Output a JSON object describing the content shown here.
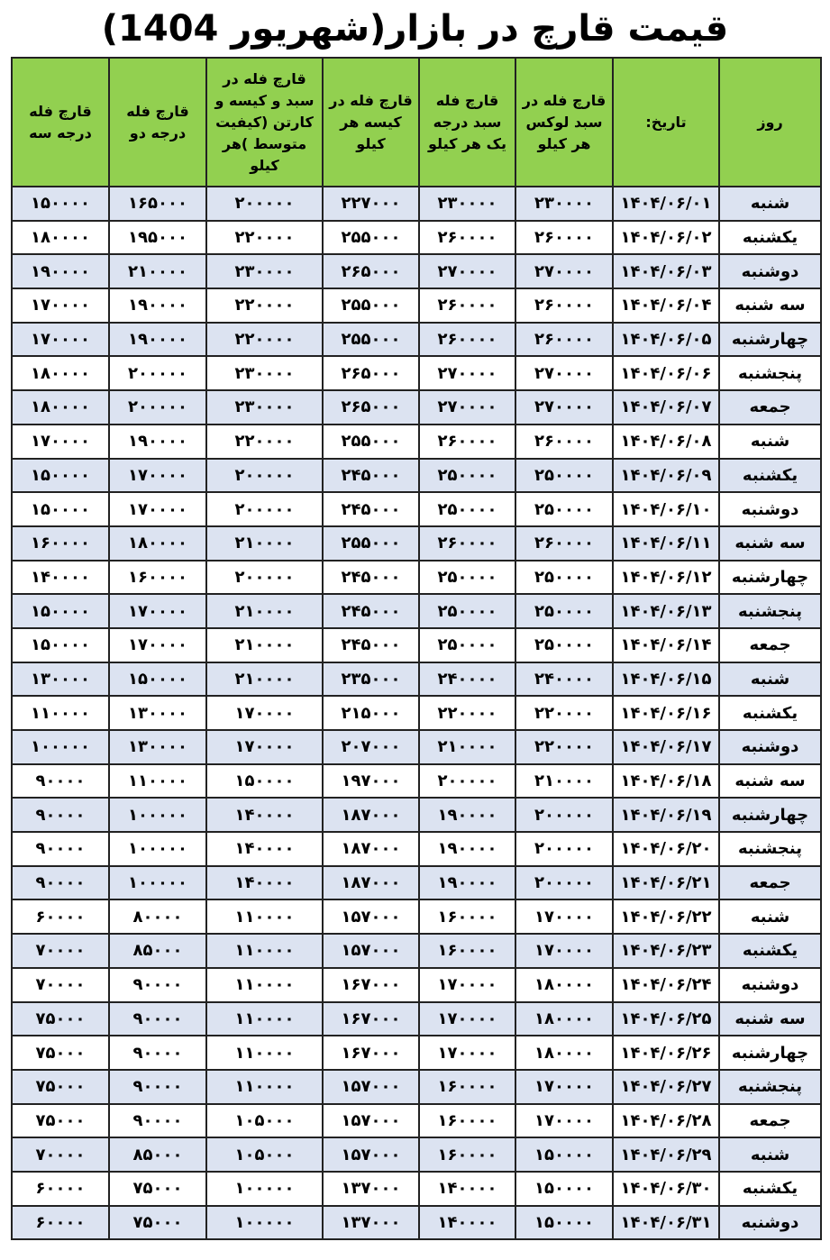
{
  "header": {
    "title": "قیمت قارچ در بازار(شهریور 1404)"
  },
  "table": {
    "columns": [
      "روز",
      "تاریخ:",
      "قارچ فله در سبد لوکس هر کیلو",
      "قارچ فله سبد درجه یک هر کیلو",
      "قارچ فله در کیسه هر کیلو",
      "قارچ فله در سبد و کیسه و کارتن (کیفیت متوسط )هر کیلو",
      "قارچ فله درجه دو",
      "قارچ فله درجه سه"
    ],
    "rows": [
      [
        "شنبه",
        "۱۴۰۴/۰۶/۰۱",
        "۲۳۰۰۰۰",
        "۲۳۰۰۰۰",
        "۲۲۷۰۰۰",
        "۲۰۰۰۰۰",
        "۱۶۵۰۰۰",
        "۱۵۰۰۰۰"
      ],
      [
        "یکشنبه",
        "۱۴۰۴/۰۶/۰۲",
        "۲۶۰۰۰۰",
        "۲۶۰۰۰۰",
        "۲۵۵۰۰۰",
        "۲۲۰۰۰۰",
        "۱۹۵۰۰۰",
        "۱۸۰۰۰۰"
      ],
      [
        "دوشنبه",
        "۱۴۰۴/۰۶/۰۳",
        "۲۷۰۰۰۰",
        "۲۷۰۰۰۰",
        "۲۶۵۰۰۰",
        "۲۳۰۰۰۰",
        "۲۱۰۰۰۰",
        "۱۹۰۰۰۰"
      ],
      [
        "سه شنبه",
        "۱۴۰۴/۰۶/۰۴",
        "۲۶۰۰۰۰",
        "۲۶۰۰۰۰",
        "۲۵۵۰۰۰",
        "۲۲۰۰۰۰",
        "۱۹۰۰۰۰",
        "۱۷۰۰۰۰"
      ],
      [
        "چهارشنبه",
        "۱۴۰۴/۰۶/۰۵",
        "۲۶۰۰۰۰",
        "۲۶۰۰۰۰",
        "۲۵۵۰۰۰",
        "۲۲۰۰۰۰",
        "۱۹۰۰۰۰",
        "۱۷۰۰۰۰"
      ],
      [
        "پنجشنبه",
        "۱۴۰۴/۰۶/۰۶",
        "۲۷۰۰۰۰",
        "۲۷۰۰۰۰",
        "۲۶۵۰۰۰",
        "۲۳۰۰۰۰",
        "۲۰۰۰۰۰",
        "۱۸۰۰۰۰"
      ],
      [
        "جمعه",
        "۱۴۰۴/۰۶/۰۷",
        "۲۷۰۰۰۰",
        "۲۷۰۰۰۰",
        "۲۶۵۰۰۰",
        "۲۳۰۰۰۰",
        "۲۰۰۰۰۰",
        "۱۸۰۰۰۰"
      ],
      [
        "شنبه",
        "۱۴۰۴/۰۶/۰۸",
        "۲۶۰۰۰۰",
        "۲۶۰۰۰۰",
        "۲۵۵۰۰۰",
        "۲۲۰۰۰۰",
        "۱۹۰۰۰۰",
        "۱۷۰۰۰۰"
      ],
      [
        "یکشنبه",
        "۱۴۰۴/۰۶/۰۹",
        "۲۵۰۰۰۰",
        "۲۵۰۰۰۰",
        "۲۴۵۰۰۰",
        "۲۰۰۰۰۰",
        "۱۷۰۰۰۰",
        "۱۵۰۰۰۰"
      ],
      [
        "دوشنبه",
        "۱۴۰۴/۰۶/۱۰",
        "۲۵۰۰۰۰",
        "۲۵۰۰۰۰",
        "۲۴۵۰۰۰",
        "۲۰۰۰۰۰",
        "۱۷۰۰۰۰",
        "۱۵۰۰۰۰"
      ],
      [
        "سه شنبه",
        "۱۴۰۴/۰۶/۱۱",
        "۲۶۰۰۰۰",
        "۲۶۰۰۰۰",
        "۲۵۵۰۰۰",
        "۲۱۰۰۰۰",
        "۱۸۰۰۰۰",
        "۱۶۰۰۰۰"
      ],
      [
        "چهارشنبه",
        "۱۴۰۴/۰۶/۱۲",
        "۲۵۰۰۰۰",
        "۲۵۰۰۰۰",
        "۲۴۵۰۰۰",
        "۲۰۰۰۰۰",
        "۱۶۰۰۰۰",
        "۱۴۰۰۰۰"
      ],
      [
        "پنجشنبه",
        "۱۴۰۴/۰۶/۱۳",
        "۲۵۰۰۰۰",
        "۲۵۰۰۰۰",
        "۲۴۵۰۰۰",
        "۲۱۰۰۰۰",
        "۱۷۰۰۰۰",
        "۱۵۰۰۰۰"
      ],
      [
        "جمعه",
        "۱۴۰۴/۰۶/۱۴",
        "۲۵۰۰۰۰",
        "۲۵۰۰۰۰",
        "۲۴۵۰۰۰",
        "۲۱۰۰۰۰",
        "۱۷۰۰۰۰",
        "۱۵۰۰۰۰"
      ],
      [
        "شنبه",
        "۱۴۰۴/۰۶/۱۵",
        "۲۴۰۰۰۰",
        "۲۴۰۰۰۰",
        "۲۳۵۰۰۰",
        "۲۱۰۰۰۰",
        "۱۵۰۰۰۰",
        "۱۳۰۰۰۰"
      ],
      [
        "یکشنبه",
        "۱۴۰۴/۰۶/۱۶",
        "۲۲۰۰۰۰",
        "۲۲۰۰۰۰",
        "۲۱۵۰۰۰",
        "۱۷۰۰۰۰",
        "۱۳۰۰۰۰",
        "۱۱۰۰۰۰"
      ],
      [
        "دوشنبه",
        "۱۴۰۴/۰۶/۱۷",
        "۲۲۰۰۰۰",
        "۲۱۰۰۰۰",
        "۲۰۷۰۰۰",
        "۱۷۰۰۰۰",
        "۱۳۰۰۰۰",
        "۱۰۰۰۰۰"
      ],
      [
        "سه شنبه",
        "۱۴۰۴/۰۶/۱۸",
        "۲۱۰۰۰۰",
        "۲۰۰۰۰۰",
        "۱۹۷۰۰۰",
        "۱۵۰۰۰۰",
        "۱۱۰۰۰۰",
        "۹۰۰۰۰"
      ],
      [
        "چهارشنبه",
        "۱۴۰۴/۰۶/۱۹",
        "۲۰۰۰۰۰",
        "۱۹۰۰۰۰",
        "۱۸۷۰۰۰",
        "۱۴۰۰۰۰",
        "۱۰۰۰۰۰",
        "۹۰۰۰۰"
      ],
      [
        "پنجشنبه",
        "۱۴۰۴/۰۶/۲۰",
        "۲۰۰۰۰۰",
        "۱۹۰۰۰۰",
        "۱۸۷۰۰۰",
        "۱۴۰۰۰۰",
        "۱۰۰۰۰۰",
        "۹۰۰۰۰"
      ],
      [
        "جمعه",
        "۱۴۰۴/۰۶/۲۱",
        "۲۰۰۰۰۰",
        "۱۹۰۰۰۰",
        "۱۸۷۰۰۰",
        "۱۴۰۰۰۰",
        "۱۰۰۰۰۰",
        "۹۰۰۰۰"
      ],
      [
        "شنبه",
        "۱۴۰۴/۰۶/۲۲",
        "۱۷۰۰۰۰",
        "۱۶۰۰۰۰",
        "۱۵۷۰۰۰",
        "۱۱۰۰۰۰",
        "۸۰۰۰۰",
        "۶۰۰۰۰"
      ],
      [
        "یکشنبه",
        "۱۴۰۴/۰۶/۲۳",
        "۱۷۰۰۰۰",
        "۱۶۰۰۰۰",
        "۱۵۷۰۰۰",
        "۱۱۰۰۰۰",
        "۸۵۰۰۰",
        "۷۰۰۰۰"
      ],
      [
        "دوشنبه",
        "۱۴۰۴/۰۶/۲۴",
        "۱۸۰۰۰۰",
        "۱۷۰۰۰۰",
        "۱۶۷۰۰۰",
        "۱۱۰۰۰۰",
        "۹۰۰۰۰",
        "۷۰۰۰۰"
      ],
      [
        "سه شنبه",
        "۱۴۰۴/۰۶/۲۵",
        "۱۸۰۰۰۰",
        "۱۷۰۰۰۰",
        "۱۶۷۰۰۰",
        "۱۱۰۰۰۰",
        "۹۰۰۰۰",
        "۷۵۰۰۰"
      ],
      [
        "چهارشنبه",
        "۱۴۰۴/۰۶/۲۶",
        "۱۸۰۰۰۰",
        "۱۷۰۰۰۰",
        "۱۶۷۰۰۰",
        "۱۱۰۰۰۰",
        "۹۰۰۰۰",
        "۷۵۰۰۰"
      ],
      [
        "پنجشنبه",
        "۱۴۰۴/۰۶/۲۷",
        "۱۷۰۰۰۰",
        "۱۶۰۰۰۰",
        "۱۵۷۰۰۰",
        "۱۱۰۰۰۰",
        "۹۰۰۰۰",
        "۷۵۰۰۰"
      ],
      [
        "جمعه",
        "۱۴۰۴/۰۶/۲۸",
        "۱۷۰۰۰۰",
        "۱۶۰۰۰۰",
        "۱۵۷۰۰۰",
        "۱۰۵۰۰۰",
        "۹۰۰۰۰",
        "۷۵۰۰۰"
      ],
      [
        "شنبه",
        "۱۴۰۴/۰۶/۲۹",
        "۱۵۰۰۰۰",
        "۱۶۰۰۰۰",
        "۱۵۷۰۰۰",
        "۱۰۵۰۰۰",
        "۸۵۰۰۰",
        "۷۰۰۰۰"
      ],
      [
        "یکشنبه",
        "۱۴۰۴/۰۶/۳۰",
        "۱۵۰۰۰۰",
        "۱۴۰۰۰۰",
        "۱۳۷۰۰۰",
        "۱۰۰۰۰۰",
        "۷۵۰۰۰",
        "۶۰۰۰۰"
      ],
      [
        "دوشنبه",
        "۱۴۰۴/۰۶/۳۱",
        "۱۵۰۰۰۰",
        "۱۴۰۰۰۰",
        "۱۳۷۰۰۰",
        "۱۰۰۰۰۰",
        "۷۵۰۰۰",
        "۶۰۰۰۰"
      ]
    ]
  }
}
